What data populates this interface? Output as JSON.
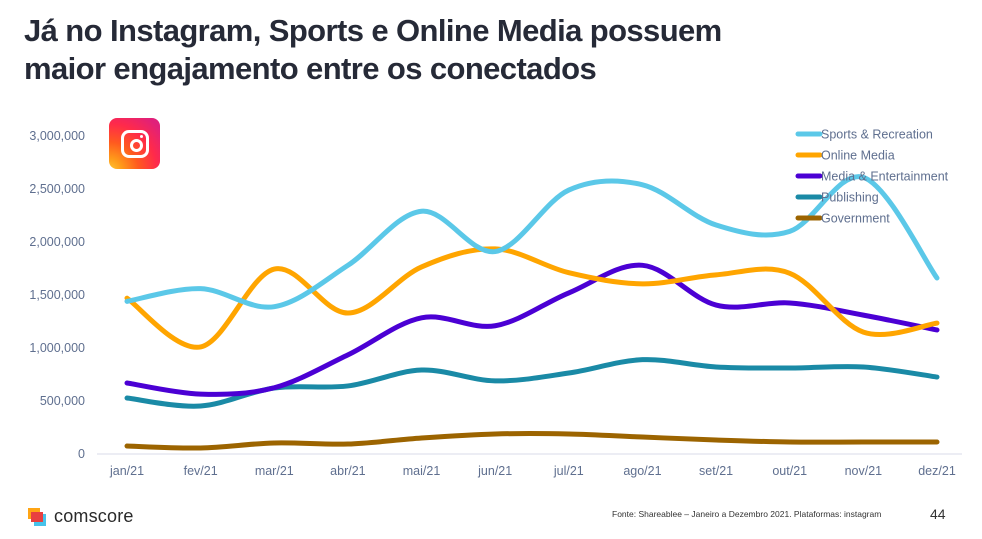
{
  "slide": {
    "title_line1": "Já no Instagram, Sports e Online Media possuem",
    "title_line2": "maior engajamento entre os conectados",
    "platform_icon": "instagram-icon",
    "footer": {
      "brand": "comscore",
      "source": "Fonte: Shareablee – Janeiro a Dezembro 2021. Plataformas: instagram",
      "page_number": "44"
    }
  },
  "chart_data": {
    "type": "line",
    "title": "",
    "xlabel": "",
    "ylabel": "",
    "smooth": true,
    "categories": [
      "jan/21",
      "fev/21",
      "mar/21",
      "abr/21",
      "mai/21",
      "jun/21",
      "jul/21",
      "ago/21",
      "set/21",
      "out/21",
      "nov/21",
      "dez/21"
    ],
    "ylim": [
      0,
      3000000
    ],
    "yticks": [
      0,
      500000,
      1000000,
      1500000,
      2000000,
      2500000,
      3000000
    ],
    "ytick_labels": [
      "0",
      "500,000",
      "1,000,000",
      "1,500,000",
      "2,000,000",
      "2,500,000",
      "3,000,000"
    ],
    "grid": false,
    "legend_position": "top-right",
    "series": [
      {
        "name": "Sports & Recreation",
        "color": "#5BC8E8",
        "values": [
          1440000,
          1560000,
          1390000,
          1780000,
          2290000,
          1910000,
          2490000,
          2540000,
          2160000,
          2100000,
          2610000,
          1660000
        ]
      },
      {
        "name": "Online Media",
        "color": "#FFA500",
        "values": [
          1470000,
          1010000,
          1745000,
          1330000,
          1765000,
          1935000,
          1710000,
          1605000,
          1690000,
          1705000,
          1150000,
          1235000
        ]
      },
      {
        "name": "Media & Entertainment",
        "color": "#4B00D4",
        "values": [
          670000,
          565000,
          625000,
          935000,
          1285000,
          1210000,
          1520000,
          1780000,
          1405000,
          1425000,
          1310000,
          1170000
        ]
      },
      {
        "name": "Publishing",
        "color": "#1A8AA6",
        "values": [
          528000,
          453000,
          623000,
          642000,
          792000,
          690000,
          764000,
          890000,
          821000,
          811000,
          821000,
          726000
        ]
      },
      {
        "name": "Government",
        "color": "#9C6400",
        "values": [
          75000,
          57000,
          104000,
          94000,
          151000,
          189000,
          189000,
          160000,
          132000,
          113000,
          113000,
          113000
        ]
      }
    ]
  }
}
